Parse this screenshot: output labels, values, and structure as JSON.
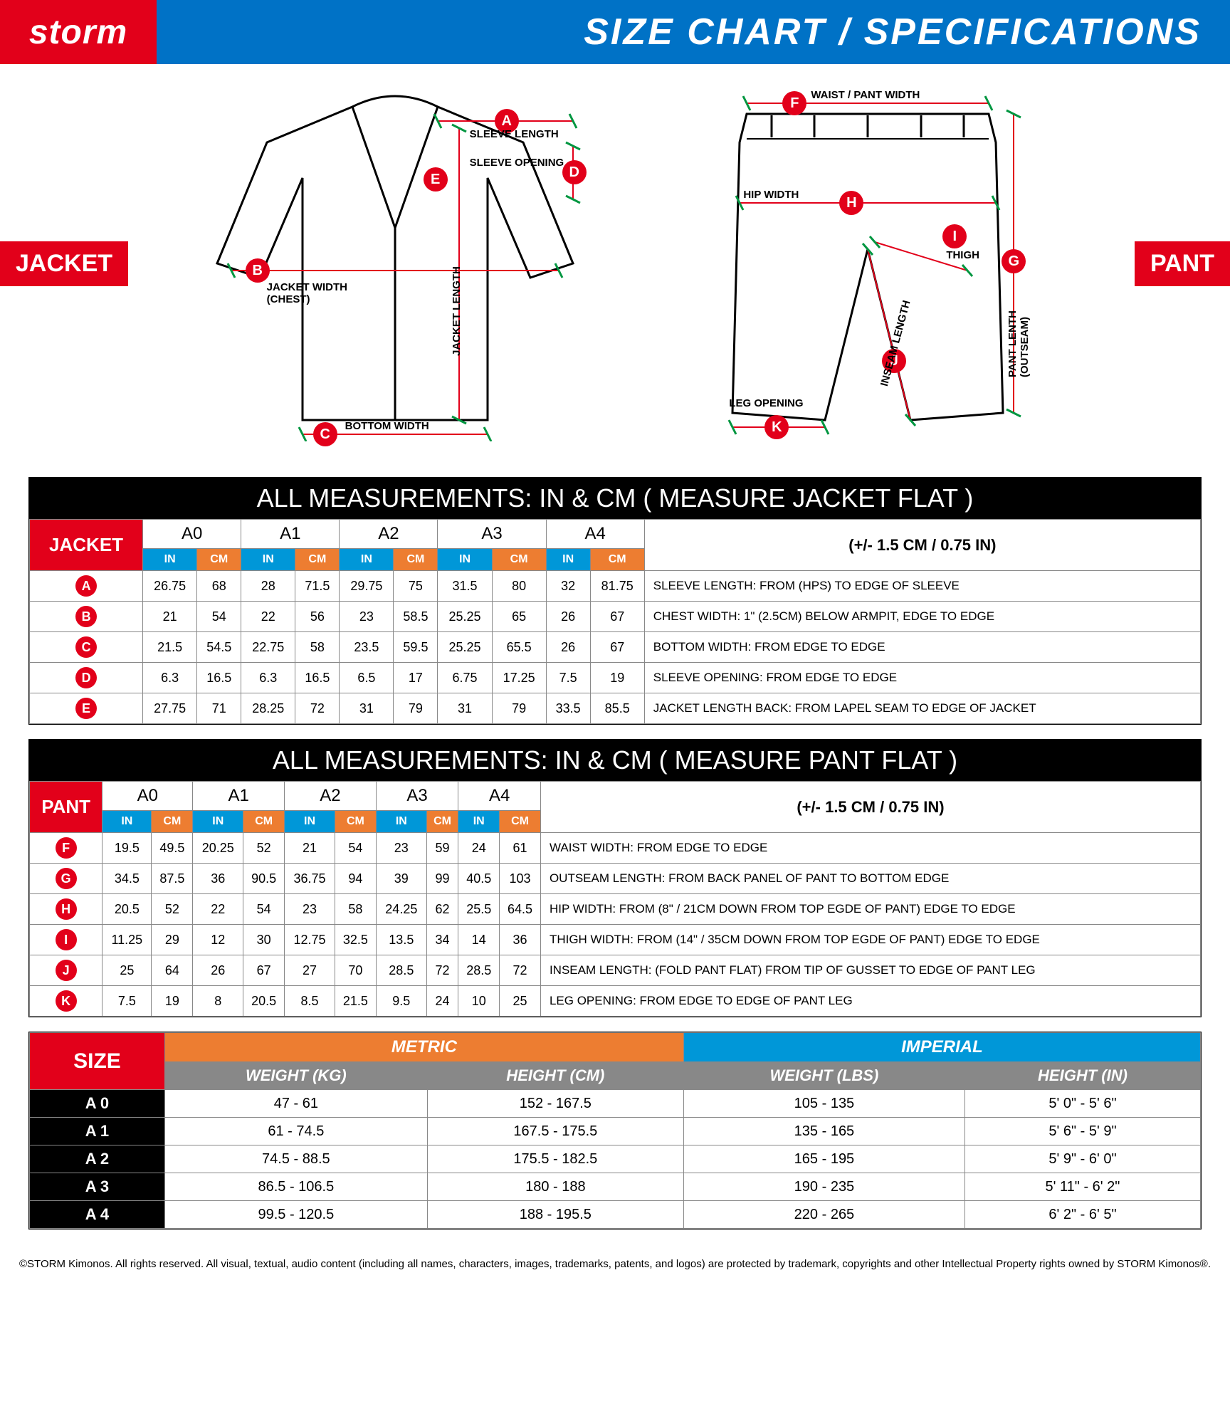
{
  "header": {
    "logo": "storm",
    "title": "SIZE  CHART / SPECIFICATIONS"
  },
  "tags": {
    "jacket": "JACKET",
    "pant": "PANT"
  },
  "jacket_diagram": {
    "labels": {
      "A": "SLEEVE LENGTH",
      "B": "JACKET WIDTH (CHEST)",
      "C": "BOTTOM WIDTH",
      "D": "SLEEVE OPENING",
      "E": "JACKET LENGTH"
    }
  },
  "pant_diagram": {
    "labels": {
      "F": "WAIST / PANT WIDTH",
      "G": "PANT LENTH (OUTSEAM)",
      "H": "HIP WIDTH",
      "I": "THIGH",
      "J": "INSEAM LENGTH",
      "K": "LEG OPENING"
    }
  },
  "jacket_table": {
    "title": "ALL MEASUREMENTS: IN & CM ( MEASURE JACKET FLAT )",
    "corner": "JACKET",
    "sizes": [
      "A0",
      "A1",
      "A2",
      "A3",
      "A4"
    ],
    "tolerance": "(+/- 1.5 CM   /   0.75 IN)",
    "unit_in": "IN",
    "unit_cm": "CM",
    "rows": [
      {
        "m": "A",
        "in": [
          "26.75",
          "28",
          "29.75",
          "31.5",
          "32"
        ],
        "cm": [
          "68",
          "71.5",
          "75",
          "80",
          "81.75"
        ],
        "d": "SLEEVE LENGTH: FROM (HPS) TO EDGE OF SLEEVE"
      },
      {
        "m": "B",
        "in": [
          "21",
          "22",
          "23",
          "25.25",
          "26"
        ],
        "cm": [
          "54",
          "56",
          "58.5",
          "65",
          "67"
        ],
        "d": "CHEST WIDTH: 1\" (2.5CM) BELOW ARMPIT, EDGE TO EDGE"
      },
      {
        "m": "C",
        "in": [
          "21.5",
          "22.75",
          "23.5",
          "25.25",
          "26"
        ],
        "cm": [
          "54.5",
          "58",
          "59.5",
          "65.5",
          "67"
        ],
        "d": "BOTTOM WIDTH: FROM EDGE TO EDGE"
      },
      {
        "m": "D",
        "in": [
          "6.3",
          "6.3",
          "6.5",
          "6.75",
          "7.5"
        ],
        "cm": [
          "16.5",
          "16.5",
          "17",
          "17.25",
          "19"
        ],
        "d": "SLEEVE OPENING: FROM EDGE TO EDGE"
      },
      {
        "m": "E",
        "in": [
          "27.75",
          "28.25",
          "31",
          "31",
          "33.5"
        ],
        "cm": [
          "71",
          "72",
          "79",
          "79",
          "85.5"
        ],
        "d": "JACKET LENGTH BACK: FROM LAPEL SEAM TO EDGE OF JACKET"
      }
    ]
  },
  "pant_table": {
    "title": "ALL MEASUREMENTS: IN & CM ( MEASURE PANT FLAT )",
    "corner": "PANT",
    "sizes": [
      "A0",
      "A1",
      "A2",
      "A3",
      "A4"
    ],
    "tolerance": "(+/- 1.5 CM   /   0.75 IN)",
    "unit_in": "IN",
    "unit_cm": "CM",
    "rows": [
      {
        "m": "F",
        "in": [
          "19.5",
          "20.25",
          "21",
          "23",
          "24"
        ],
        "cm": [
          "49.5",
          "52",
          "54",
          "59",
          "61"
        ],
        "d": "WAIST WIDTH: FROM EDGE TO EDGE"
      },
      {
        "m": "G",
        "in": [
          "34.5",
          "36",
          "36.75",
          "39",
          "40.5"
        ],
        "cm": [
          "87.5",
          "90.5",
          "94",
          "99",
          "103"
        ],
        "d": "OUTSEAM LENGTH: FROM BACK PANEL OF PANT TO BOTTOM EDGE"
      },
      {
        "m": "H",
        "in": [
          "20.5",
          "22",
          "23",
          "24.25",
          "25.5"
        ],
        "cm": [
          "52",
          "54",
          "58",
          "62",
          "64.5"
        ],
        "d": "HIP WIDTH: FROM (8\" / 21CM DOWN FROM TOP EGDE OF PANT) EDGE TO EDGE"
      },
      {
        "m": "I",
        "in": [
          "11.25",
          "12",
          "12.75",
          "13.5",
          "14"
        ],
        "cm": [
          "29",
          "30",
          "32.5",
          "34",
          "36"
        ],
        "d": "THIGH WIDTH: FROM (14\" / 35CM DOWN FROM TOP EGDE OF PANT) EDGE TO EDGE"
      },
      {
        "m": "J",
        "in": [
          "25",
          "26",
          "27",
          "28.5",
          "28.5"
        ],
        "cm": [
          "64",
          "67",
          "70",
          "72",
          "72"
        ],
        "d": "INSEAM LENGTH: (FOLD PANT FLAT) FROM TIP OF GUSSET TO EDGE OF PANT LEG"
      },
      {
        "m": "K",
        "in": [
          "7.5",
          "8",
          "8.5",
          "9.5",
          "10"
        ],
        "cm": [
          "19",
          "20.5",
          "21.5",
          "24",
          "25"
        ],
        "d": "LEG OPENING: FROM EDGE TO EDGE OF PANT LEG"
      }
    ]
  },
  "size_guide": {
    "size_label": "SIZE",
    "metric": "METRIC",
    "imperial": "IMPERIAL",
    "cols": [
      "WEIGHT (KG)",
      "HEIGHT (CM)",
      "WEIGHT (LBS)",
      "HEIGHT (IN)"
    ],
    "rows": [
      {
        "s": "A 0",
        "v": [
          "47 - 61",
          "152 - 167.5",
          "105 - 135",
          "5' 0\" - 5' 6\""
        ]
      },
      {
        "s": "A 1",
        "v": [
          "61 - 74.5",
          "167.5 - 175.5",
          "135 - 165",
          "5' 6\" - 5' 9\""
        ]
      },
      {
        "s": "A 2",
        "v": [
          "74.5 - 88.5",
          "175.5 - 182.5",
          "165 - 195",
          "5' 9\" - 6' 0\""
        ]
      },
      {
        "s": "A 3",
        "v": [
          "86.5 - 106.5",
          "180 - 188",
          "190 - 235",
          "5' 11\" - 6' 2\""
        ]
      },
      {
        "s": "A 4",
        "v": [
          "99.5 - 120.5",
          "188 - 195.5",
          "220 - 265",
          "6' 2\" - 6' 5\""
        ]
      }
    ]
  },
  "copyright": "©STORM Kimonos.  All rights reserved.  All visual, textual, audio content  (including all names, characters, images, trademarks, patents, and logos) are protected by trademark, copyrights and other Intellectual Property rights owned by STORM Kimonos®."
}
